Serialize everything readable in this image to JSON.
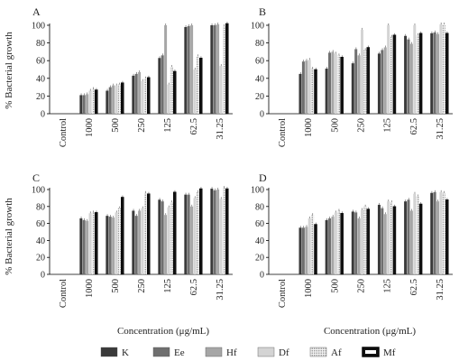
{
  "figure": {
    "ylabel": "% Bacterial growth",
    "xlabel": "Concentration (μg/mL)",
    "categories": [
      "Control",
      "1000",
      "500",
      "250",
      "125",
      "62.5",
      "31.25"
    ],
    "ylim": [
      0,
      100
    ],
    "yticks": [
      0,
      20,
      40,
      60,
      80,
      100
    ],
    "legend": [
      {
        "name": "K",
        "color": "#3a3a3a",
        "pattern": "solid"
      },
      {
        "name": "Ee",
        "color": "#6f6f6f",
        "pattern": "solid"
      },
      {
        "name": "Hf",
        "color": "#a6a6a6",
        "pattern": "solid"
      },
      {
        "name": "Df",
        "color": "#d4d4d4",
        "pattern": "solid"
      },
      {
        "name": "Af",
        "color": "#c8c8c8",
        "pattern": "dotted"
      },
      {
        "name": "Mf",
        "color": "#111111",
        "pattern": "outlined-black"
      }
    ]
  },
  "chart_data": [
    {
      "type": "bar",
      "panel": "A",
      "categories": [
        "Control",
        "1000",
        "500",
        "250",
        "125",
        "62.5",
        "31.25"
      ],
      "ylim": [
        0,
        100
      ],
      "series": [
        {
          "name": "K",
          "values": [
            0,
            21,
            26,
            43,
            63,
            98,
            100
          ]
        },
        {
          "name": "Ee",
          "values": [
            0,
            21,
            30,
            45,
            66,
            99,
            100
          ]
        },
        {
          "name": "Hf",
          "values": [
            0,
            22,
            32,
            47,
            100,
            100,
            101
          ]
        },
        {
          "name": "Df",
          "values": [
            0,
            26,
            32,
            37,
            33,
            50,
            54
          ]
        },
        {
          "name": "Af",
          "values": [
            0,
            28,
            33,
            40,
            53,
            65,
            99
          ]
        },
        {
          "name": "Mf",
          "values": [
            0,
            27,
            35,
            41,
            48,
            63,
            102
          ]
        }
      ]
    },
    {
      "type": "bar",
      "panel": "B",
      "categories": [
        "Control",
        "1000",
        "500",
        "250",
        "125",
        "62.5",
        "31.25"
      ],
      "ylim": [
        0,
        100
      ],
      "series": [
        {
          "name": "K",
          "values": [
            0,
            45,
            51,
            57,
            68,
            88,
            91
          ]
        },
        {
          "name": "Ee",
          "values": [
            0,
            59,
            69,
            73,
            72,
            84,
            92
          ]
        },
        {
          "name": "Hf",
          "values": [
            0,
            60,
            70,
            66,
            75,
            79,
            90
          ]
        },
        {
          "name": "Df",
          "values": [
            0,
            61,
            68,
            95,
            100,
            100,
            101
          ]
        },
        {
          "name": "Af",
          "values": [
            0,
            51,
            66,
            72,
            87,
            89,
            101
          ]
        },
        {
          "name": "Mf",
          "values": [
            0,
            50,
            64,
            75,
            89,
            91,
            91
          ]
        }
      ]
    },
    {
      "type": "bar",
      "panel": "C",
      "categories": [
        "Control",
        "1000",
        "500",
        "250",
        "125",
        "62.5",
        "31.25"
      ],
      "ylim": [
        0,
        100
      ],
      "series": [
        {
          "name": "K",
          "values": [
            0,
            66,
            69,
            75,
            88,
            94,
            101
          ]
        },
        {
          "name": "Ee",
          "values": [
            0,
            64,
            68,
            69,
            86,
            94,
            99
          ]
        },
        {
          "name": "Hf",
          "values": [
            0,
            63,
            67,
            75,
            70,
            80,
            100
          ]
        },
        {
          "name": "Df",
          "values": [
            0,
            72,
            73,
            78,
            79,
            90,
            89
          ]
        },
        {
          "name": "Af",
          "values": [
            0,
            73,
            78,
            96,
            85,
            97,
            102
          ]
        },
        {
          "name": "Mf",
          "values": [
            0,
            73,
            91,
            95,
            97,
            101,
            101
          ]
        }
      ]
    },
    {
      "type": "bar",
      "panel": "D",
      "categories": [
        "Control",
        "1000",
        "500",
        "250",
        "125",
        "62.5",
        "31.25"
      ],
      "ylim": [
        0,
        100
      ],
      "series": [
        {
          "name": "K",
          "values": [
            0,
            55,
            64,
            74,
            82,
            86,
            96
          ]
        },
        {
          "name": "Ee",
          "values": [
            0,
            55,
            66,
            73,
            78,
            88,
            97
          ]
        },
        {
          "name": "Hf",
          "values": [
            0,
            56,
            68,
            66,
            71,
            75,
            86
          ]
        },
        {
          "name": "Df",
          "values": [
            0,
            66,
            73,
            76,
            86,
            95,
            97
          ]
        },
        {
          "name": "Af",
          "values": [
            0,
            70,
            75,
            80,
            85,
            92,
            96
          ]
        },
        {
          "name": "Mf",
          "values": [
            0,
            59,
            72,
            77,
            80,
            83,
            88
          ]
        }
      ]
    }
  ]
}
